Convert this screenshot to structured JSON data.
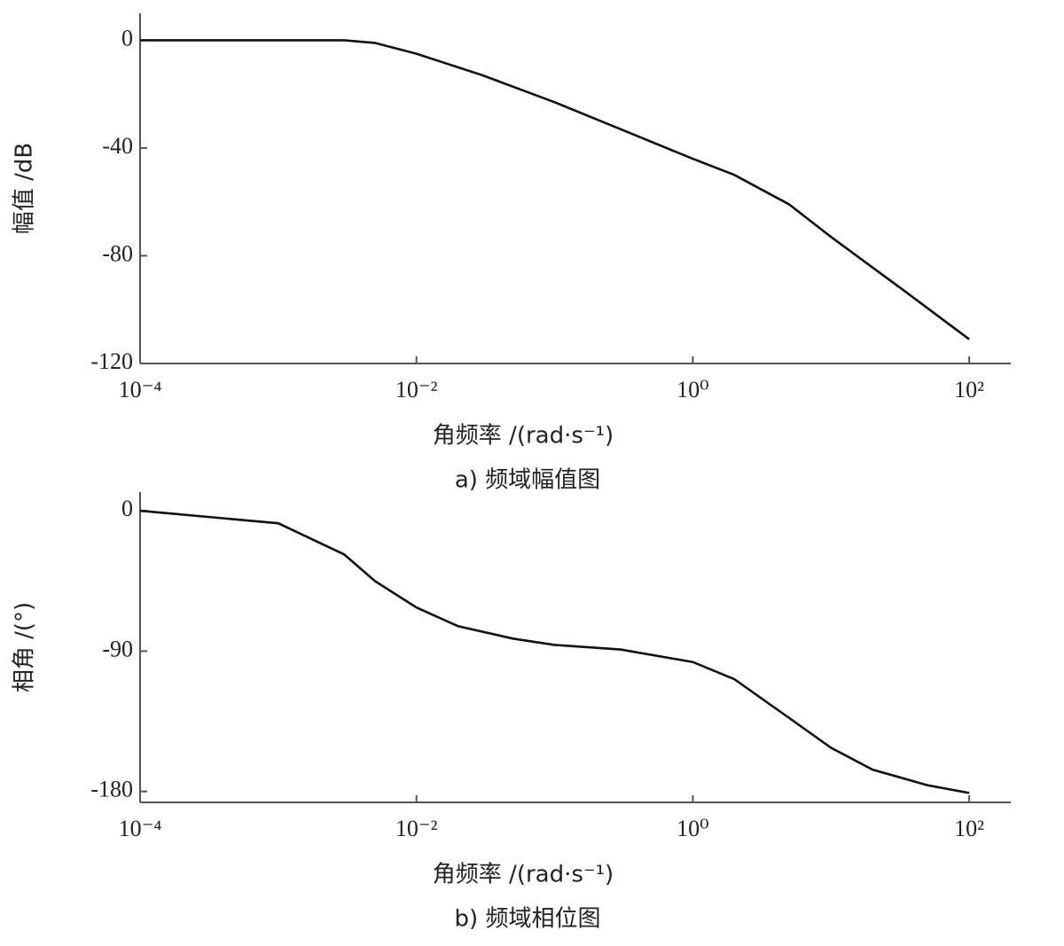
{
  "chart_data": [
    {
      "type": "line",
      "xscale": "log",
      "ylabel": "幅值 /dB",
      "xlabel": "角频率 /(rad·s⁻¹)",
      "caption": "a)   频域幅值图",
      "xlim": [
        0.0001,
        200
      ],
      "ylim": [
        -120,
        10
      ],
      "xticks": [
        {
          "value": 0.0001,
          "label": "10⁻⁴"
        },
        {
          "value": 0.01,
          "label": "10⁻²"
        },
        {
          "value": 1,
          "label": "10⁰"
        },
        {
          "value": 100,
          "label": "10²"
        }
      ],
      "yticks": [
        0,
        -40,
        -80,
        -120
      ],
      "x": [
        0.0001,
        0.001,
        0.003,
        0.005,
        0.01,
        0.03,
        0.1,
        0.3,
        1,
        2,
        5,
        10,
        30,
        100
      ],
      "series": [
        {
          "color": "#111111",
          "values": [
            0,
            0,
            0,
            -1,
            -5,
            -13,
            -23,
            -33,
            -44,
            -50,
            -61,
            -73,
            -91,
            -111
          ]
        }
      ]
    },
    {
      "type": "line",
      "xscale": "log",
      "ylabel": "相角 /(°)",
      "xlabel": "角频率 /(rad·s⁻¹)",
      "caption": "b)   频域相位图",
      "xlim": [
        0.0001,
        200
      ],
      "ylim": [
        -187,
        12
      ],
      "xticks": [
        {
          "value": 0.0001,
          "label": "10⁻⁴"
        },
        {
          "value": 0.01,
          "label": "10⁻²"
        },
        {
          "value": 1,
          "label": "10⁰"
        },
        {
          "value": 100,
          "label": "10²"
        }
      ],
      "yticks": [
        0,
        -90,
        -180
      ],
      "x": [
        0.0001,
        0.001,
        0.003,
        0.005,
        0.01,
        0.02,
        0.05,
        0.1,
        0.3,
        1,
        2,
        5,
        10,
        20,
        50,
        100
      ],
      "series": [
        {
          "color": "#111111",
          "values": [
            0,
            -8,
            -28,
            -45,
            -62,
            -74,
            -82,
            -86,
            -89,
            -97,
            -108,
            -133,
            -152,
            -166,
            -176,
            -181
          ]
        }
      ]
    }
  ]
}
